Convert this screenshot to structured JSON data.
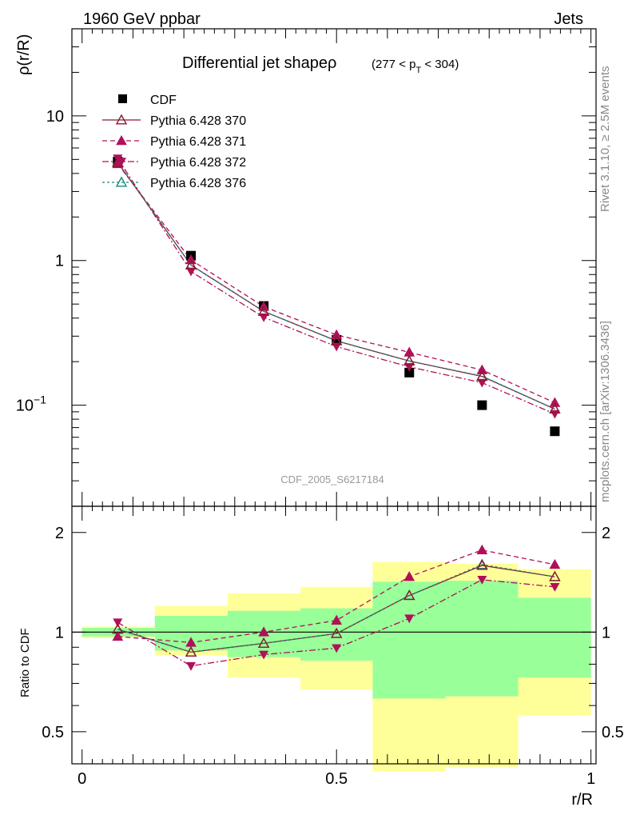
{
  "header": {
    "left": "1960 GeV ppbar",
    "right": "Jets",
    "side_top": "Rivet 3.1.10, ≥ 2.5M events",
    "side_bottom": "mcplots.cern.ch [arXiv:1306.3436]",
    "watermark": "CDF_2005_S6217184"
  },
  "chart_data": [
    {
      "type": "line",
      "title": "Differential jet shapeρ",
      "title_range_a": "(277 < p",
      "title_range_sub": "T",
      "title_range_b": " < 304)",
      "ylabel": "ρ(r/R)",
      "yscale": "log",
      "ylim": [
        0.02,
        40
      ],
      "xlim": [
        -0.02,
        1.01
      ],
      "yticks": [
        {
          "value": 10,
          "label": "10"
        },
        {
          "value": 1,
          "label": "1"
        },
        {
          "value": 0.1,
          "label": "10",
          "exp": "−1"
        }
      ],
      "x": [
        0.07,
        0.214,
        0.357,
        0.5,
        0.643,
        0.786,
        0.929
      ],
      "data": {
        "name": "CDF",
        "values": [
          4.83,
          1.08,
          0.485,
          0.283,
          0.168,
          0.1,
          0.066
        ]
      },
      "series": [
        {
          "name": "Pythia 6.428 370",
          "color": "#8b1a2e",
          "marker": "triangle-open",
          "dash": "",
          "values": [
            4.76,
            0.93,
            0.445,
            0.278,
            0.202,
            0.158,
            0.094
          ]
        },
        {
          "name": "Pythia 6.428 371",
          "color": "#b0105a",
          "marker": "triangle-up",
          "dash": "6,4",
          "values": [
            4.66,
            1.01,
            0.48,
            0.306,
            0.232,
            0.175,
            0.104
          ]
        },
        {
          "name": "Pythia 6.428 372",
          "color": "#b0105a",
          "marker": "triangle-down",
          "dash": "8,3,2,3",
          "values": [
            5.08,
            0.84,
            0.405,
            0.254,
            0.184,
            0.143,
            0.087
          ]
        },
        {
          "name": "Pythia 6.428 376",
          "color": "#1a8a7a",
          "marker": "triangle-open",
          "dash": "3,3",
          "values": [
            4.78,
            0.93,
            0.445,
            0.279,
            0.202,
            0.159,
            0.094
          ]
        }
      ]
    },
    {
      "type": "line",
      "ylabel": "Ratio to CDF",
      "xlabel": "r/R",
      "yscale": "log",
      "ylim": [
        0.4,
        2.4
      ],
      "xlim": [
        -0.02,
        1.01
      ],
      "yticks": [
        {
          "value": 2,
          "label": "2"
        },
        {
          "value": 1,
          "label": "1"
        },
        {
          "value": 0.5,
          "label": "0.5"
        }
      ],
      "xticks": [
        {
          "value": 0,
          "label": "0"
        },
        {
          "value": 0.5,
          "label": "0.5"
        },
        {
          "value": 1,
          "label": "1"
        }
      ],
      "bin_edges": [
        0.0,
        0.143,
        0.286,
        0.429,
        0.571,
        0.714,
        0.857,
        1.0
      ],
      "band_green": [
        [
          0.97,
          1.03
        ],
        [
          0.88,
          1.12
        ],
        [
          0.84,
          1.16
        ],
        [
          0.82,
          1.18
        ],
        [
          0.63,
          1.42
        ],
        [
          0.64,
          1.43
        ],
        [
          0.73,
          1.27
        ]
      ],
      "band_yellow": [
        [
          0.96,
          1.04
        ],
        [
          0.85,
          1.2
        ],
        [
          0.73,
          1.31
        ],
        [
          0.67,
          1.37
        ],
        [
          0.38,
          1.63
        ],
        [
          0.39,
          1.61
        ],
        [
          0.56,
          1.55
        ]
      ],
      "series": [
        {
          "name": "Pythia 6.428 370",
          "values": [
            1.02,
            0.87,
            0.925,
            0.99,
            1.29,
            1.59,
            1.47
          ]
        },
        {
          "name": "Pythia 6.428 371",
          "values": [
            0.97,
            0.93,
            1.0,
            1.085,
            1.47,
            1.77,
            1.6
          ]
        },
        {
          "name": "Pythia 6.428 372",
          "values": [
            1.07,
            0.79,
            0.855,
            0.895,
            1.1,
            1.44,
            1.37
          ]
        },
        {
          "name": "Pythia 6.428 376",
          "values": [
            1.02,
            0.87,
            0.925,
            0.99,
            1.29,
            1.6,
            1.47
          ]
        }
      ]
    }
  ]
}
